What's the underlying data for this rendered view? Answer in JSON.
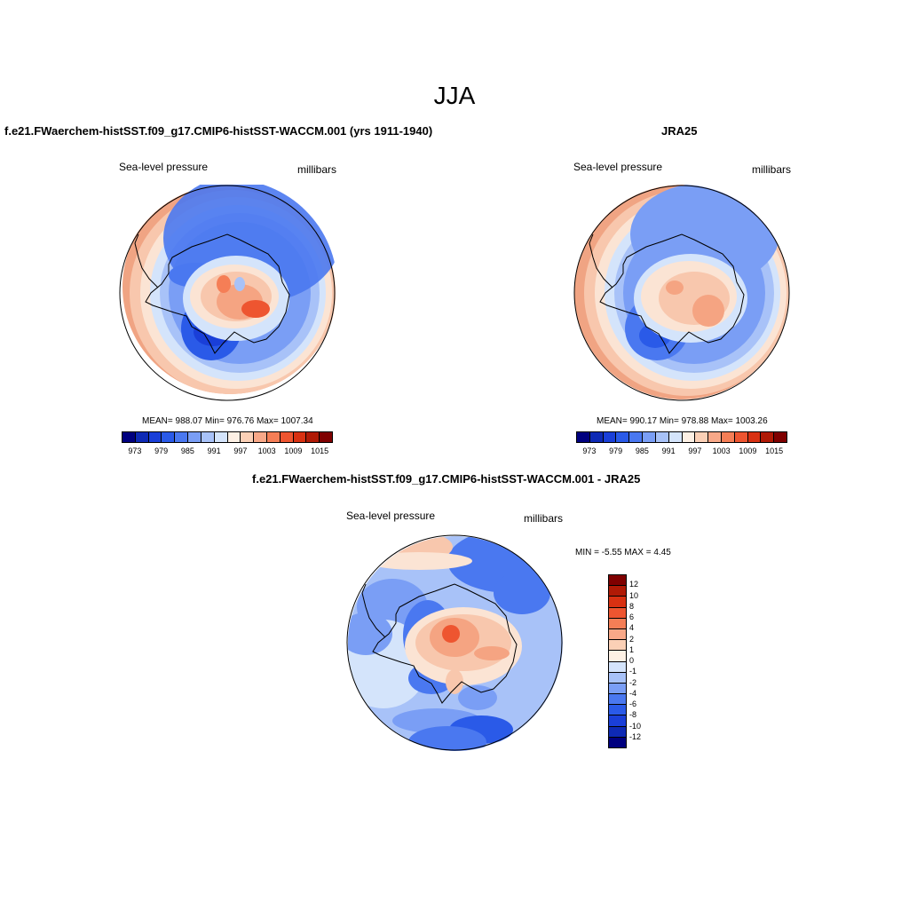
{
  "figure": {
    "season_title": "JJA"
  },
  "panels": {
    "model": {
      "title": "f.e21.FWaerchem-histSST.f09_g17.CMIP6-histSST-WACCM.001 (yrs 1911-1940)",
      "variable": "Sea-level pressure",
      "units": "millibars",
      "stats": "MEAN= 988.07  Min= 976.76  Max= 1007.34"
    },
    "obs": {
      "title": "JRA25",
      "variable": "Sea-level pressure",
      "units": "millibars",
      "stats": "MEAN= 990.17  Min= 978.88  Max= 1003.26"
    },
    "diff": {
      "title": "f.e21.FWaerchem-histSST.f09_g17.CMIP6-histSST-WACCM.001 - JRA25",
      "variable": "Sea-level pressure",
      "units": "millibars",
      "stats": "MIN =  -5.55 MAX =   4.45"
    }
  },
  "chart_data": {
    "type": "map",
    "projection": "south polar stereographic",
    "levels_abs": [
      973,
      979,
      985,
      991,
      997,
      1003,
      1009,
      1015
    ],
    "colors_abs": [
      "#00007f",
      "#0e2ab5",
      "#1a3fd8",
      "#2a5ae8",
      "#4a78f0",
      "#7a9ef5",
      "#a8c2f8",
      "#d4e4fb",
      "#fdf0e4",
      "#fbd0b6",
      "#f8a888",
      "#f57e56",
      "#ee5530",
      "#d83112",
      "#b01a06",
      "#7f0000"
    ],
    "levels_diff": [
      "12",
      "10",
      "8",
      "6",
      "4",
      "2",
      "1",
      "0",
      "-1",
      "-2",
      "-4",
      "-6",
      "-8",
      "-10",
      "-12"
    ],
    "colors_diff": [
      "#7f0000",
      "#b01a06",
      "#d83112",
      "#ee5530",
      "#f57e56",
      "#f8a888",
      "#fbd0b6",
      "#fdf0e4",
      "#d4e4fb",
      "#a8c2f8",
      "#7a9ef5",
      "#4a78f0",
      "#2a5ae8",
      "#1a3fd8",
      "#0e2ab5",
      "#00007f"
    ],
    "model_summary": {
      "mean": 988.07,
      "min": 976.76,
      "max": 1007.34
    },
    "obs_summary": {
      "mean": 990.17,
      "min": 978.88,
      "max": 1003.26
    },
    "diff_summary": {
      "min": -5.55,
      "max": 4.45
    }
  }
}
